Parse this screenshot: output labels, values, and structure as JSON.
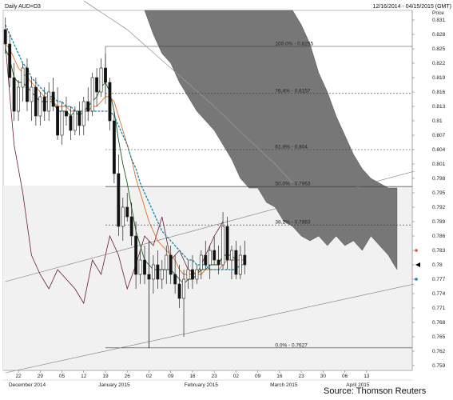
{
  "header": {
    "instrument": "Daily AUD=D3",
    "date_range": "12/16/2014 - 04/15/2015 (GMT)"
  },
  "source": "Source: Thomson Reuters",
  "chart_data": {
    "type": "candlestick",
    "ylabel": "Price",
    "ylim": [
      0.758,
      0.833
    ],
    "y_ticks": [
      {
        "v": 0.831,
        "label": "0.831"
      },
      {
        "v": 0.828,
        "label": "0.828"
      },
      {
        "v": 0.825,
        "label": "0.825"
      },
      {
        "v": 0.822,
        "label": "0.822"
      },
      {
        "v": 0.819,
        "label": "0.819"
      },
      {
        "v": 0.816,
        "label": "0.816"
      },
      {
        "v": 0.813,
        "label": "0.813"
      },
      {
        "v": 0.81,
        "label": "0.81"
      },
      {
        "v": 0.807,
        "label": "0.807"
      },
      {
        "v": 0.804,
        "label": "0.804"
      },
      {
        "v": 0.801,
        "label": "0.801"
      },
      {
        "v": 0.798,
        "label": "0.798"
      },
      {
        "v": 0.795,
        "label": "0.795"
      },
      {
        "v": 0.792,
        "label": "0.792"
      },
      {
        "v": 0.789,
        "label": "0.789"
      },
      {
        "v": 0.786,
        "label": "0.786"
      },
      {
        "v": 0.783,
        "label": "0.783"
      },
      {
        "v": 0.78,
        "label": "0.78"
      },
      {
        "v": 0.777,
        "label": "0.777"
      },
      {
        "v": 0.774,
        "label": "0.774"
      },
      {
        "v": 0.771,
        "label": "0.771"
      },
      {
        "v": 0.768,
        "label": "0.768"
      },
      {
        "v": 0.765,
        "label": "0.765"
      },
      {
        "v": 0.762,
        "label": "0.762"
      },
      {
        "v": 0.759,
        "label": "0.759"
      }
    ],
    "x_ticks": [
      {
        "i": 3,
        "label": "22"
      },
      {
        "i": 8,
        "label": "29"
      },
      {
        "i": 13,
        "label": "05"
      },
      {
        "i": 18,
        "label": "12"
      },
      {
        "i": 23,
        "label": "19"
      },
      {
        "i": 28,
        "label": "26"
      },
      {
        "i": 33,
        "label": "02"
      },
      {
        "i": 38,
        "label": "09"
      },
      {
        "i": 43,
        "label": "16"
      },
      {
        "i": 48,
        "label": "23"
      },
      {
        "i": 53,
        "label": "02"
      },
      {
        "i": 58,
        "label": "09"
      },
      {
        "i": 63,
        "label": "16"
      },
      {
        "i": 68,
        "label": "23"
      },
      {
        "i": 73,
        "label": "30"
      },
      {
        "i": 78,
        "label": "06"
      },
      {
        "i": 83,
        "label": "13"
      }
    ],
    "x_months": [
      {
        "i": 5,
        "label": "December 2014"
      },
      {
        "i": 25,
        "label": "January 2015"
      },
      {
        "i": 45,
        "label": "February 2015"
      },
      {
        "i": 64,
        "label": "March 2015"
      },
      {
        "i": 81,
        "label": "April 2015"
      }
    ],
    "fib_levels": [
      {
        "pct": "100.0%",
        "v": 0.8255
      },
      {
        "pct": "76.4%",
        "v": 0.8157
      },
      {
        "pct": "61.8%",
        "v": 0.804
      },
      {
        "pct": "50.0%",
        "v": 0.7963
      },
      {
        "pct": "38.2%",
        "v": 0.7883
      },
      {
        "pct": "0.0%",
        "v": 0.7627
      }
    ],
    "current_price": 0.78,
    "candles": [
      {
        "o": 0.829,
        "h": 0.8315,
        "l": 0.824,
        "c": 0.826
      },
      {
        "o": 0.826,
        "h": 0.828,
        "l": 0.817,
        "c": 0.819
      },
      {
        "o": 0.819,
        "h": 0.822,
        "l": 0.81,
        "c": 0.812
      },
      {
        "o": 0.812,
        "h": 0.8185,
        "l": 0.81,
        "c": 0.817
      },
      {
        "o": 0.817,
        "h": 0.822,
        "l": 0.814,
        "c": 0.821
      },
      {
        "o": 0.821,
        "h": 0.823,
        "l": 0.812,
        "c": 0.814
      },
      {
        "o": 0.814,
        "h": 0.819,
        "l": 0.81,
        "c": 0.817
      },
      {
        "o": 0.817,
        "h": 0.819,
        "l": 0.809,
        "c": 0.811
      },
      {
        "o": 0.811,
        "h": 0.816,
        "l": 0.809,
        "c": 0.815
      },
      {
        "o": 0.815,
        "h": 0.817,
        "l": 0.81,
        "c": 0.812
      },
      {
        "o": 0.812,
        "h": 0.818,
        "l": 0.81,
        "c": 0.816
      },
      {
        "o": 0.816,
        "h": 0.819,
        "l": 0.812,
        "c": 0.813
      },
      {
        "o": 0.813,
        "h": 0.817,
        "l": 0.806,
        "c": 0.807
      },
      {
        "o": 0.807,
        "h": 0.814,
        "l": 0.805,
        "c": 0.812
      },
      {
        "o": 0.812,
        "h": 0.815,
        "l": 0.809,
        "c": 0.811
      },
      {
        "o": 0.811,
        "h": 0.813,
        "l": 0.806,
        "c": 0.808
      },
      {
        "o": 0.808,
        "h": 0.813,
        "l": 0.807,
        "c": 0.812
      },
      {
        "o": 0.812,
        "h": 0.814,
        "l": 0.807,
        "c": 0.809
      },
      {
        "o": 0.809,
        "h": 0.815,
        "l": 0.807,
        "c": 0.814
      },
      {
        "o": 0.814,
        "h": 0.817,
        "l": 0.81,
        "c": 0.812
      },
      {
        "o": 0.812,
        "h": 0.82,
        "l": 0.811,
        "c": 0.819
      },
      {
        "o": 0.819,
        "h": 0.821,
        "l": 0.813,
        "c": 0.816
      },
      {
        "o": 0.816,
        "h": 0.823,
        "l": 0.815,
        "c": 0.821
      },
      {
        "o": 0.821,
        "h": 0.824,
        "l": 0.815,
        "c": 0.818
      },
      {
        "o": 0.818,
        "h": 0.819,
        "l": 0.808,
        "c": 0.81
      },
      {
        "o": 0.81,
        "h": 0.812,
        "l": 0.797,
        "c": 0.799
      },
      {
        "o": 0.799,
        "h": 0.803,
        "l": 0.786,
        "c": 0.788
      },
      {
        "o": 0.788,
        "h": 0.794,
        "l": 0.785,
        "c": 0.792
      },
      {
        "o": 0.792,
        "h": 0.795,
        "l": 0.789,
        "c": 0.79
      },
      {
        "o": 0.79,
        "h": 0.793,
        "l": 0.784,
        "c": 0.786
      },
      {
        "o": 0.786,
        "h": 0.789,
        "l": 0.775,
        "c": 0.778
      },
      {
        "o": 0.778,
        "h": 0.783,
        "l": 0.776,
        "c": 0.781
      },
      {
        "o": 0.781,
        "h": 0.784,
        "l": 0.776,
        "c": 0.778
      },
      {
        "o": 0.778,
        "h": 0.785,
        "l": 0.7627,
        "c": 0.777
      },
      {
        "o": 0.777,
        "h": 0.782,
        "l": 0.774,
        "c": 0.78
      },
      {
        "o": 0.78,
        "h": 0.783,
        "l": 0.775,
        "c": 0.777
      },
      {
        "o": 0.777,
        "h": 0.781,
        "l": 0.775,
        "c": 0.779
      },
      {
        "o": 0.779,
        "h": 0.784,
        "l": 0.776,
        "c": 0.782
      },
      {
        "o": 0.782,
        "h": 0.784,
        "l": 0.776,
        "c": 0.778
      },
      {
        "o": 0.778,
        "h": 0.782,
        "l": 0.774,
        "c": 0.776
      },
      {
        "o": 0.776,
        "h": 0.78,
        "l": 0.771,
        "c": 0.773
      },
      {
        "o": 0.773,
        "h": 0.779,
        "l": 0.765,
        "c": 0.777
      },
      {
        "o": 0.777,
        "h": 0.781,
        "l": 0.775,
        "c": 0.779
      },
      {
        "o": 0.779,
        "h": 0.782,
        "l": 0.775,
        "c": 0.777
      },
      {
        "o": 0.777,
        "h": 0.78,
        "l": 0.776,
        "c": 0.779
      },
      {
        "o": 0.779,
        "h": 0.783,
        "l": 0.777,
        "c": 0.782
      },
      {
        "o": 0.782,
        "h": 0.785,
        "l": 0.779,
        "c": 0.78
      },
      {
        "o": 0.78,
        "h": 0.784,
        "l": 0.777,
        "c": 0.783
      },
      {
        "o": 0.783,
        "h": 0.786,
        "l": 0.78,
        "c": 0.781
      },
      {
        "o": 0.781,
        "h": 0.784,
        "l": 0.778,
        "c": 0.78
      },
      {
        "o": 0.78,
        "h": 0.791,
        "l": 0.779,
        "c": 0.788
      },
      {
        "o": 0.788,
        "h": 0.79,
        "l": 0.779,
        "c": 0.781
      },
      {
        "o": 0.781,
        "h": 0.784,
        "l": 0.777,
        "c": 0.783
      },
      {
        "o": 0.783,
        "h": 0.785,
        "l": 0.777,
        "c": 0.778
      },
      {
        "o": 0.778,
        "h": 0.784,
        "l": 0.777,
        "c": 0.782
      },
      {
        "o": 0.782,
        "h": 0.785,
        "l": 0.778,
        "c": 0.78
      }
    ],
    "ma_fast": [
      0.825,
      0.823,
      0.819,
      0.818,
      0.818,
      0.817,
      0.816,
      0.815,
      0.814,
      0.814,
      0.814,
      0.814,
      0.812,
      0.812,
      0.812,
      0.811,
      0.812,
      0.811,
      0.812,
      0.813,
      0.814,
      0.815,
      0.817,
      0.818,
      0.816,
      0.812,
      0.806,
      0.801,
      0.797,
      0.792,
      0.787,
      0.784,
      0.781,
      0.78,
      0.779,
      0.779,
      0.779,
      0.779,
      0.779,
      0.778,
      0.777,
      0.776,
      0.777,
      0.777,
      0.778,
      0.779,
      0.779,
      0.78,
      0.78,
      0.78,
      0.782,
      0.782,
      0.782,
      0.781,
      0.781,
      0.781
    ],
    "ma_mid": [
      0.826,
      0.825,
      0.823,
      0.821,
      0.82,
      0.819,
      0.818,
      0.817,
      0.816,
      0.815,
      0.815,
      0.814,
      0.813,
      0.813,
      0.813,
      0.812,
      0.812,
      0.812,
      0.812,
      0.812,
      0.813,
      0.813,
      0.814,
      0.815,
      0.815,
      0.814,
      0.811,
      0.808,
      0.805,
      0.802,
      0.798,
      0.795,
      0.792,
      0.789,
      0.787,
      0.785,
      0.784,
      0.783,
      0.782,
      0.781,
      0.779,
      0.778,
      0.778,
      0.778,
      0.778,
      0.778,
      0.779,
      0.779,
      0.779,
      0.779,
      0.78,
      0.781,
      0.781,
      0.781,
      0.781,
      0.781
    ],
    "ma_slow": [
      0.83,
      0.828,
      0.826,
      0.824,
      0.822,
      0.821,
      0.819,
      0.818,
      0.817,
      0.816,
      0.815,
      0.815,
      0.814,
      0.814,
      0.813,
      0.813,
      0.812,
      0.812,
      0.812,
      0.812,
      0.812,
      0.812,
      0.812,
      0.812,
      0.812,
      0.811,
      0.809,
      0.807,
      0.805,
      0.802,
      0.8,
      0.797,
      0.795,
      0.793,
      0.791,
      0.789,
      0.787,
      0.786,
      0.785,
      0.784,
      0.783,
      0.782,
      0.781,
      0.781,
      0.78,
      0.78,
      0.78,
      0.779,
      0.779,
      0.779,
      0.779,
      0.779,
      0.779,
      0.779,
      0.78,
      0.78
    ],
    "ma_long_i": [
      18,
      28,
      38,
      48,
      56,
      62,
      66
    ],
    "ma_long": [
      0.835,
      0.829,
      0.821,
      0.813,
      0.806,
      0.801,
      0.797
    ],
    "lagging_i": [
      0,
      2,
      4,
      6,
      8,
      10,
      12,
      14,
      16,
      18,
      20,
      22,
      24,
      26,
      28,
      30,
      32,
      34,
      36,
      38,
      40,
      42,
      44,
      46,
      48,
      50
    ],
    "lagging": [
      0.826,
      0.805,
      0.795,
      0.782,
      0.778,
      0.775,
      0.779,
      0.777,
      0.775,
      0.772,
      0.781,
      0.778,
      0.786,
      0.782,
      0.775,
      0.78,
      0.786,
      0.784,
      0.79,
      0.781,
      0.783,
      0.779,
      0.778,
      0.782,
      0.786,
      0.789
    ],
    "cloud_top_i": [
      32,
      36,
      40,
      44,
      48,
      52,
      54,
      56,
      58,
      60,
      62,
      64,
      66,
      68,
      70,
      72,
      74,
      76,
      78,
      80,
      82,
      84,
      86,
      88,
      90
    ],
    "cloud_top": [
      0.833,
      0.833,
      0.833,
      0.833,
      0.833,
      0.833,
      0.833,
      0.833,
      0.833,
      0.833,
      0.833,
      0.833,
      0.833,
      0.83,
      0.826,
      0.82,
      0.816,
      0.811,
      0.807,
      0.803,
      0.8,
      0.798,
      0.797,
      0.796,
      0.796
    ],
    "cloud_bot_i": [
      32,
      34,
      36,
      38,
      40,
      42,
      44,
      46,
      48,
      50,
      52,
      54,
      56,
      58,
      60,
      62,
      64,
      66,
      68,
      70,
      72,
      74,
      76,
      78,
      80,
      82,
      84,
      86,
      88,
      90
    ],
    "cloud_bot": [
      0.833,
      0.828,
      0.824,
      0.822,
      0.818,
      0.815,
      0.812,
      0.81,
      0.808,
      0.805,
      0.802,
      0.798,
      0.796,
      0.796,
      0.793,
      0.792,
      0.789,
      0.788,
      0.786,
      0.785,
      0.786,
      0.784,
      0.786,
      0.784,
      0.785,
      0.783,
      0.786,
      0.784,
      0.782,
      0.779
    ],
    "trend_upper": [
      {
        "i": 0,
        "v": 0.7765
      },
      {
        "i": 94,
        "v": 0.7995
      }
    ],
    "trend_lower": [
      {
        "i": 0,
        "v": 0.7575
      },
      {
        "i": 94,
        "v": 0.776
      }
    ],
    "colors": {
      "bull": "#ffffff",
      "bear": "#111111",
      "ma_fast": "#1a5c1a",
      "ma_mid": "#e26a1c",
      "ma_slow": "#1486a8",
      "ma_long": "#999999",
      "lagging": "#6b1d2a",
      "cloud": "#777777",
      "current_marker": "#000000"
    }
  }
}
